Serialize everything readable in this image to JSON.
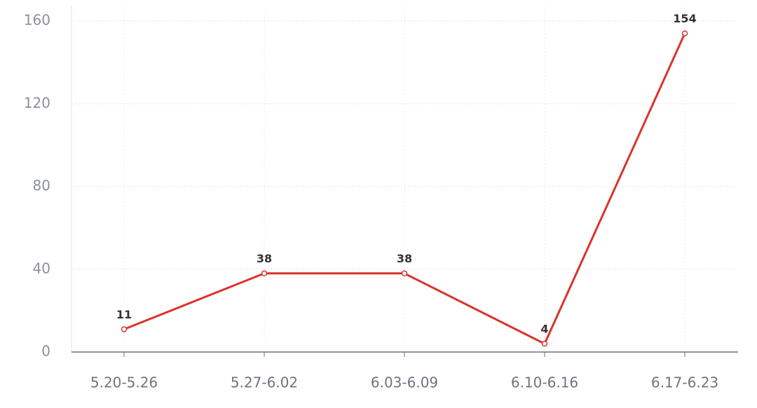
{
  "chart_data": {
    "type": "line",
    "categories": [
      "5.20-5.26",
      "5.27-6.02",
      "6.03-6.09",
      "6.10-6.16",
      "6.17-6.23"
    ],
    "values": [
      11,
      38,
      38,
      4,
      154
    ],
    "color": "#d9342b",
    "ylim": [
      0,
      160
    ],
    "yticks": [
      0,
      40,
      80,
      120,
      160
    ],
    "grid": true
  }
}
